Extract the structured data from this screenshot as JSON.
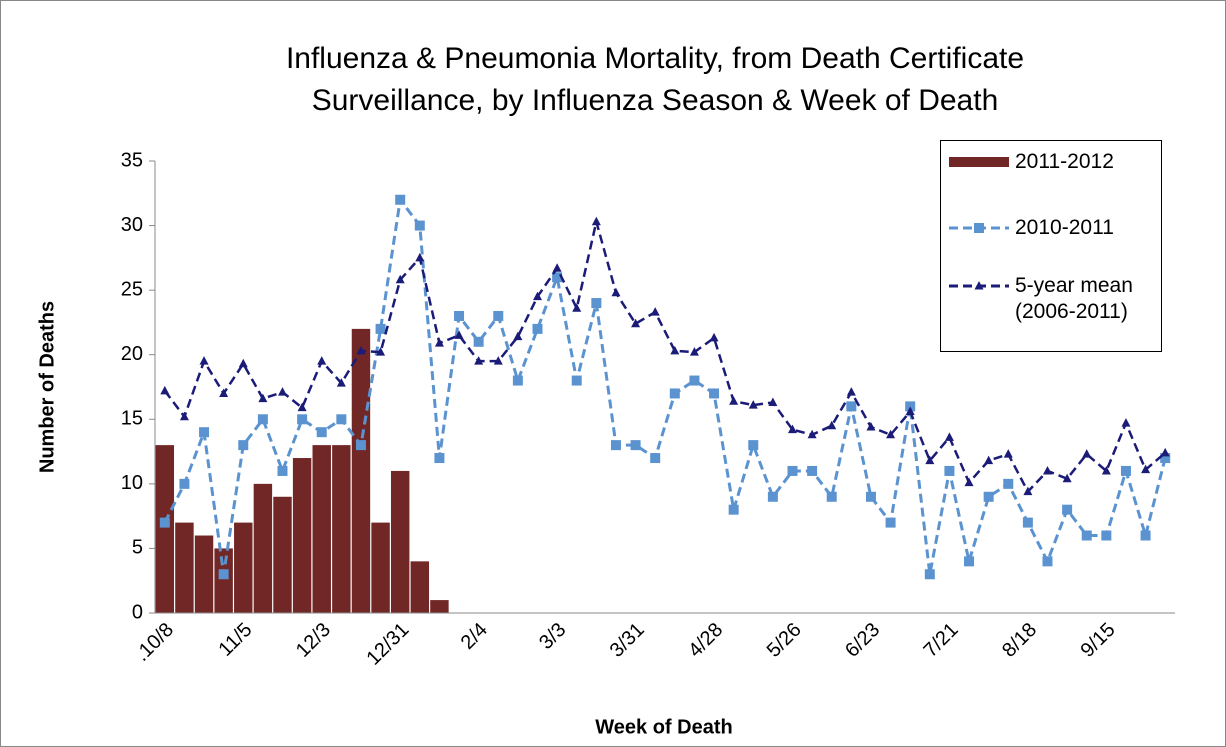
{
  "chart_data": {
    "type": "bar-line",
    "title": [
      "Influenza & Pneumonia Mortality, from Death Certificate",
      "Surveillance, by Influenza Season & Week of Death"
    ],
    "x_label": "Week of Death",
    "y_label": "Number of Deaths",
    "categories": [
      ".10/8",
      null,
      null,
      null,
      "11/5",
      null,
      null,
      null,
      "12/3",
      null,
      null,
      null,
      "12/31",
      null,
      null,
      null,
      "2/4",
      null,
      null,
      null,
      "3/3",
      null,
      null,
      null,
      "3/31",
      null,
      null,
      null,
      "4/28",
      null,
      null,
      null,
      "5/26",
      null,
      null,
      null,
      "6/23",
      null,
      null,
      null,
      "7/21",
      null,
      null,
      null,
      "8/18",
      null,
      null,
      null,
      "9/15",
      null,
      null,
      null
    ],
    "ylim": [
      0,
      35
    ],
    "yticks": [
      0,
      5,
      10,
      15,
      20,
      25,
      30,
      35
    ],
    "legend": "top-right",
    "series": [
      {
        "name": "2011-2012",
        "type": "bar",
        "color": "#722727",
        "values": [
          13,
          7,
          6,
          5,
          7,
          10,
          9,
          12,
          13,
          13,
          22,
          7,
          11,
          4,
          1,
          null,
          null,
          null,
          null,
          null,
          null,
          null,
          null,
          null,
          null,
          null,
          null,
          null,
          null,
          null,
          null,
          null,
          null,
          null,
          null,
          null,
          null,
          null,
          null,
          null,
          null,
          null,
          null,
          null,
          null,
          null,
          null,
          null,
          null,
          null,
          null,
          null
        ]
      },
      {
        "name": "2010-2011",
        "type": "line",
        "color": "#5b93d0",
        "marker": "square",
        "dash": true,
        "values": [
          7,
          10,
          14,
          3,
          13,
          15,
          11,
          15,
          14,
          15,
          13,
          22,
          32,
          30,
          12,
          23,
          21,
          23,
          18,
          22,
          26,
          18,
          24,
          13,
          13,
          12,
          17,
          18,
          17,
          8,
          13,
          9,
          11,
          11,
          9,
          16,
          9,
          7,
          16,
          3,
          11,
          4,
          9,
          10,
          7,
          4,
          8,
          6,
          6,
          11,
          6,
          12
        ]
      },
      {
        "name": "5-year mean (2006-2011)",
        "type": "line",
        "color": "#1b1b78",
        "marker": "triangle",
        "dash": true,
        "values": [
          17.2,
          15.2,
          19.5,
          17,
          19.3,
          16.6,
          17.1,
          15.9,
          19.5,
          17.8,
          20.3,
          20.2,
          25.8,
          27.5,
          20.9,
          21.5,
          19.5,
          19.5,
          21.4,
          24.5,
          26.7,
          23.6,
          30.3,
          24.8,
          22.4,
          23.3,
          20.3,
          20.2,
          21.3,
          16.4,
          16.1,
          16.3,
          14.2,
          13.8,
          14.5,
          17.1,
          14.4,
          13.8,
          15.6,
          11.8,
          13.6,
          10.1,
          11.8,
          12.3,
          9.4,
          11.0,
          10.4,
          12.3,
          11.0,
          14.7,
          11.1,
          12.4
        ]
      }
    ]
  }
}
